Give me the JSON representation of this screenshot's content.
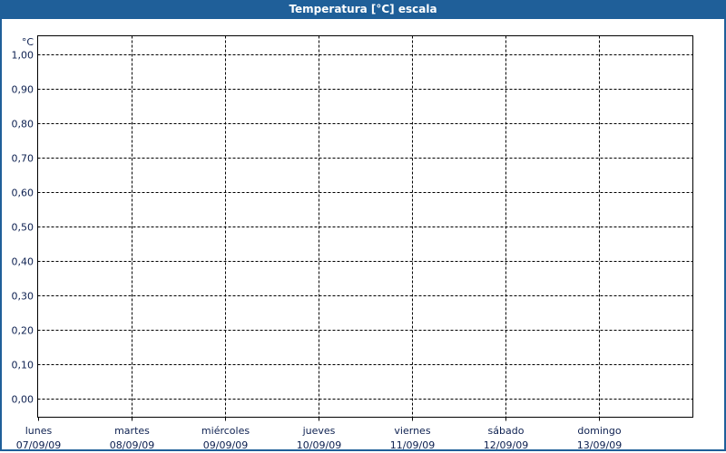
{
  "window": {
    "title": "Temperatura [°C] escala"
  },
  "chart_data": {
    "type": "line",
    "title": "Temperatura [°C] escala",
    "ylabel": "°C",
    "ylim": [
      0,
      1
    ],
    "yticks": [
      "0,00",
      "0,10",
      "0,20",
      "0,30",
      "0,40",
      "0,50",
      "0,60",
      "0,70",
      "0,80",
      "0,90",
      "1,00"
    ],
    "ytick_values": [
      0,
      0.1,
      0.2,
      0.3,
      0.4,
      0.5,
      0.6,
      0.7,
      0.8,
      0.9,
      1.0
    ],
    "xticks": [
      {
        "day": "lunes",
        "date": "07/09/09"
      },
      {
        "day": "martes",
        "date": "08/09/09"
      },
      {
        "day": "miércoles",
        "date": "09/09/09"
      },
      {
        "day": "jueves",
        "date": "10/09/09"
      },
      {
        "day": "viernes",
        "date": "11/09/09"
      },
      {
        "day": "sábado",
        "date": "12/09/09"
      },
      {
        "day": "domingo",
        "date": "13/09/09"
      }
    ],
    "grid": true,
    "series": [],
    "colors": {
      "titlebar": "#1f5f99",
      "text": "#0d2050",
      "grid": "#000000"
    }
  }
}
